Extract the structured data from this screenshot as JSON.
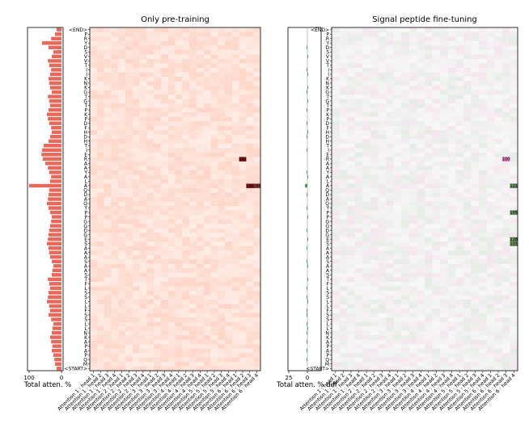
{
  "chart_data": [
    {
      "type": "heatmap",
      "title": "Only pre-training",
      "xlabel": "",
      "ylabel": "",
      "side_bar_xlabel": "Total atten. %",
      "side_bar_ticks": [
        "100",
        "0"
      ],
      "colormap": "Reds",
      "rows": [
        "<START>",
        "M",
        "Q",
        "P",
        "A",
        "P",
        "A",
        "K",
        "N",
        "L",
        "L",
        "S",
        "S",
        "F",
        "L",
        "L",
        "S",
        "S",
        "L",
        "F",
        "T",
        "S",
        "A",
        "A",
        "S",
        "A",
        "A",
        "A",
        "S",
        "E",
        "G",
        "D",
        "G",
        "G",
        "P",
        "P",
        "Y",
        "Q",
        "A",
        "D",
        "Q",
        "A",
        "L",
        "A",
        "Y",
        "A",
        "A",
        "R",
        "E",
        "I",
        "T",
        "H",
        "D",
        "H",
        "F",
        "D",
        "P",
        "K",
        "P",
        "T",
        "G",
        "T",
        "G",
        "K",
        "N",
        "K",
        "I",
        "I",
        "T",
        "V",
        "V",
        "S",
        "D",
        "Y",
        "R",
        "P",
        "<END>"
      ],
      "columns": [
        "Attention 1 : head 1",
        "Attention 1 : head 2",
        "Attention 1 : head 3",
        "Attention 1 : head 4",
        "Attention 2 : head 1",
        "Attention 2 : head 2",
        "Attention 2 : head 3",
        "Attention 2 : head 4",
        "Attention 3 : head 1",
        "Attention 3 : head 2",
        "Attention 3 : head 3",
        "Attention 3 : head 4",
        "Attention 4 : head 1",
        "Attention 4 : head 2",
        "Attention 4 : head 3",
        "Attention 4 : head 4",
        "Attention 5 : head 1",
        "Attention 5 : head 2",
        "Attention 5 : head 3",
        "Attention 5 : head 4",
        "Attention 6 : head 1",
        "Attention 6 : head 2",
        "Attention 6 : head 3",
        "Attention 6 : head 4"
      ],
      "side_bars": [
        15,
        20,
        22,
        25,
        30,
        28,
        32,
        35,
        30,
        28,
        25,
        32,
        40,
        35,
        38,
        45,
        42,
        40,
        35,
        38,
        42,
        30,
        28,
        25,
        30,
        35,
        38,
        40,
        45,
        42,
        40,
        38,
        35,
        32,
        30,
        35,
        40,
        45,
        42,
        40,
        38,
        100,
        35,
        32,
        38,
        42,
        50,
        58,
        62,
        60,
        55,
        40,
        35,
        30,
        32,
        38,
        42,
        45,
        40,
        35,
        38,
        42,
        30,
        35,
        38,
        40,
        35,
        32,
        38,
        42,
        30,
        25,
        40,
        60,
        32,
        20,
        15
      ],
      "highlights": [
        {
          "row": 41,
          "col": 22,
          "value": "140"
        },
        {
          "row": 41,
          "col": 23,
          "value": "249"
        },
        {
          "row": 47,
          "col": 21,
          "value": "101"
        }
      ]
    },
    {
      "type": "heatmap",
      "title": "Signal peptide fine-tuning",
      "xlabel": "",
      "ylabel": "",
      "side_bar_xlabel": "Total atten. % diff",
      "side_bar_ticks": [
        "25",
        "0"
      ],
      "colormap": "PiYG",
      "rows": [
        "<START>",
        "M",
        "Q",
        "P",
        "A",
        "P",
        "A",
        "K",
        "N",
        "L",
        "L",
        "S",
        "S",
        "F",
        "L",
        "L",
        "S",
        "S",
        "L",
        "F",
        "T",
        "S",
        "A",
        "A",
        "S",
        "A",
        "A",
        "A",
        "S",
        "E",
        "G",
        "D",
        "G",
        "G",
        "P",
        "P",
        "Y",
        "Q",
        "A",
        "D",
        "Q",
        "A",
        "L",
        "A",
        "Y",
        "A",
        "A",
        "R",
        "E",
        "I",
        "T",
        "H",
        "D",
        "H",
        "F",
        "D",
        "P",
        "K",
        "P",
        "T",
        "G",
        "T",
        "G",
        "K",
        "N",
        "K",
        "I",
        "I",
        "T",
        "V",
        "V",
        "S",
        "D",
        "Y",
        "R",
        "P",
        "<END>"
      ],
      "columns": [
        "Attention 1 : head 1",
        "Attention 1 : head 2",
        "Attention 1 : head 3",
        "Attention 1 : head 4",
        "Attention 2 : head 1",
        "Attention 2 : head 2",
        "Attention 2 : head 3",
        "Attention 2 : head 4",
        "Attention 3 : head 1",
        "Attention 3 : head 2",
        "Attention 3 : head 3",
        "Attention 3 : head 4",
        "Attention 4 : head 1",
        "Attention 4 : head 2",
        "Attention 4 : head 3",
        "Attention 4 : head 4",
        "Attention 5 : head 1",
        "Attention 5 : head 2",
        "Attention 5 : head 3",
        "Attention 5 : head 4",
        "Attention 6 : head 1",
        "Attention 6 : head 2",
        "Attention 6 : head 3",
        "Attention 6 : head 4"
      ],
      "side_bars": [
        0,
        0,
        -1,
        0,
        -1,
        0,
        -1,
        0,
        -1,
        1,
        -1,
        0,
        -1,
        -1,
        0,
        1,
        -1,
        0,
        -1,
        0,
        1,
        0,
        0,
        1,
        -1,
        0,
        0,
        -1,
        0,
        1,
        0,
        -1,
        0,
        0,
        1,
        0,
        -1,
        0,
        0,
        -1,
        0,
        -3,
        0,
        1,
        -1,
        0,
        0,
        0,
        0,
        -1,
        0,
        0,
        -1,
        1,
        0,
        -1,
        0,
        0,
        -1,
        0,
        1,
        0,
        -1,
        1,
        0,
        0,
        1,
        -1,
        0,
        0,
        1,
        0,
        -1,
        0,
        0,
        0,
        0
      ],
      "highlights": [
        {
          "row": 28,
          "col": 23,
          "value": "131"
        },
        {
          "row": 29,
          "col": 23,
          "value": "118"
        },
        {
          "row": 35,
          "col": 23,
          "value": "105"
        },
        {
          "row": 41,
          "col": 23,
          "value": "121"
        },
        {
          "row": 47,
          "col": 22,
          "value": "100"
        }
      ]
    }
  ]
}
